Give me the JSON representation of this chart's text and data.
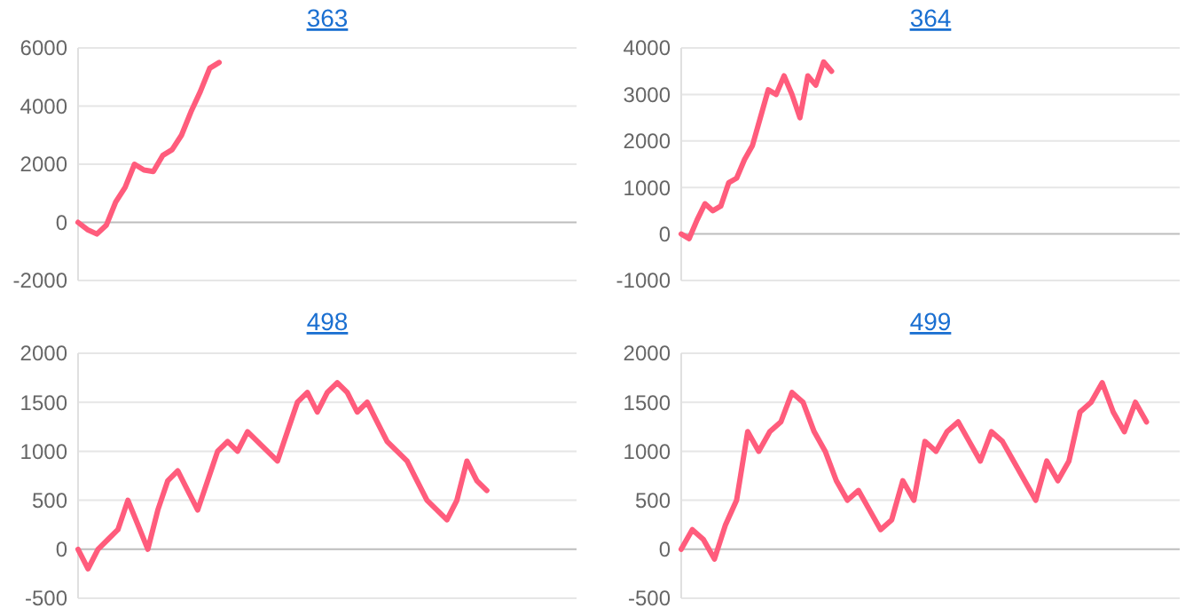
{
  "chart_data": [
    {
      "type": "line",
      "title": "363",
      "ylim": [
        -2000,
        6000
      ],
      "yticks": [
        -2000,
        0,
        2000,
        4000,
        6000
      ],
      "grid": true,
      "line_style": "solid",
      "marker": "none",
      "categories": [
        null,
        null,
        null,
        null,
        null,
        null,
        null,
        null,
        null,
        null,
        null,
        null,
        null,
        null,
        null,
        null,
        null,
        null,
        null,
        null,
        null,
        null,
        null,
        null,
        null,
        null,
        null,
        null,
        null,
        null,
        null,
        null,
        null,
        null,
        null,
        null,
        null,
        null,
        null,
        null,
        null,
        null,
        null,
        null,
        null,
        null,
        null,
        null,
        null,
        null,
        null,
        null,
        null,
        null
      ],
      "series": [
        {
          "color": "#ff5c7c",
          "values": [
            0,
            -250,
            -400,
            -100,
            700,
            1200,
            2000,
            1800,
            1750,
            2300,
            2500,
            3000,
            3800,
            4500,
            5300,
            5500,
            null,
            null,
            null,
            null,
            null,
            null,
            null,
            null,
            null,
            null,
            null,
            null,
            null,
            null,
            null,
            null,
            null,
            null,
            null,
            null,
            null,
            null,
            null,
            null,
            null,
            null,
            null,
            null,
            null,
            null,
            null,
            null,
            null,
            null,
            null,
            null,
            null,
            null
          ]
        }
      ]
    },
    {
      "type": "line",
      "title": "364",
      "ylim": [
        -1000,
        4000
      ],
      "yticks": [
        -1000,
        0,
        1000,
        2000,
        3000,
        4000
      ],
      "grid": true,
      "line_style": "solid",
      "marker": "none",
      "categories": [
        null,
        null,
        null,
        null,
        null,
        null,
        null,
        null,
        null,
        null,
        null,
        null,
        null,
        null,
        null,
        null,
        null,
        null,
        null,
        null,
        null,
        null,
        null,
        null,
        null,
        null,
        null,
        null,
        null,
        null,
        null,
        null,
        null,
        null,
        null,
        null,
        null,
        null,
        null,
        null,
        null,
        null,
        null,
        null,
        null,
        null,
        null,
        null,
        null,
        null,
        null,
        null,
        null,
        null,
        null,
        null,
        null,
        null,
        null,
        null,
        null,
        null,
        null,
        null
      ],
      "series": [
        {
          "color": "#ff5c7c",
          "values": [
            0,
            -100,
            300,
            650,
            500,
            600,
            1100,
            1200,
            1600,
            1900,
            2500,
            3100,
            3000,
            3400,
            3000,
            2500,
            3400,
            3200,
            3700,
            3500,
            null,
            null,
            null,
            null,
            null,
            null,
            null,
            null,
            null,
            null,
            null,
            null,
            null,
            null,
            null,
            null,
            null,
            null,
            null,
            null,
            null,
            null,
            null,
            null,
            null,
            null,
            null,
            null,
            null,
            null,
            null,
            null,
            null,
            null,
            null,
            null,
            null,
            null,
            null,
            null,
            null,
            null,
            null,
            null
          ]
        }
      ]
    },
    {
      "type": "line",
      "title": "498",
      "ylim": [
        -500,
        2000
      ],
      "yticks": [
        -500,
        0,
        500,
        1000,
        1500,
        2000
      ],
      "grid": true,
      "line_style": "solid",
      "marker": "none",
      "categories": [
        null,
        null,
        null,
        null,
        null,
        null,
        null,
        null,
        null,
        null,
        null,
        null,
        null,
        null,
        null,
        null,
        null,
        null,
        null,
        null,
        null,
        null,
        null,
        null,
        null,
        null,
        null,
        null,
        null,
        null,
        null,
        null,
        null,
        null,
        null,
        null,
        null,
        null,
        null,
        null,
        null,
        null,
        null,
        null,
        null,
        null,
        null,
        null,
        null,
        null,
        null
      ],
      "series": [
        {
          "color": "#ff5c7c",
          "values": [
            0,
            -200,
            0,
            100,
            200,
            500,
            250,
            0,
            400,
            700,
            800,
            600,
            400,
            700,
            1000,
            1100,
            1000,
            1200,
            1100,
            1000,
            900,
            1200,
            1500,
            1600,
            1400,
            1600,
            1700,
            1600,
            1400,
            1500,
            1300,
            1100,
            1000,
            900,
            700,
            500,
            400,
            300,
            500,
            900,
            700,
            600,
            null,
            null,
            null,
            null,
            null,
            null,
            null,
            null,
            null
          ]
        }
      ]
    },
    {
      "type": "line",
      "title": "499",
      "ylim": [
        -500,
        2000
      ],
      "yticks": [
        -500,
        0,
        500,
        1000,
        1500,
        2000
      ],
      "grid": true,
      "line_style": "solid",
      "marker": "none",
      "categories": [
        null,
        null,
        null,
        null,
        null,
        null,
        null,
        null,
        null,
        null,
        null,
        null,
        null,
        null,
        null,
        null,
        null,
        null,
        null,
        null,
        null,
        null,
        null,
        null,
        null,
        null,
        null,
        null,
        null,
        null,
        null,
        null,
        null,
        null,
        null,
        null,
        null,
        null,
        null,
        null,
        null,
        null,
        null,
        null,
        null,
        null
      ],
      "series": [
        {
          "color": "#ff5c7c",
          "values": [
            0,
            200,
            100,
            -100,
            250,
            500,
            1200,
            1000,
            1200,
            1300,
            1600,
            1500,
            1200,
            1000,
            700,
            500,
            600,
            400,
            200,
            300,
            700,
            500,
            1100,
            1000,
            1200,
            1300,
            1100,
            900,
            1200,
            1100,
            900,
            700,
            500,
            900,
            700,
            900,
            1400,
            1500,
            1700,
            1400,
            1200,
            1500,
            1300,
            null,
            null,
            null
          ]
        }
      ]
    }
  ]
}
